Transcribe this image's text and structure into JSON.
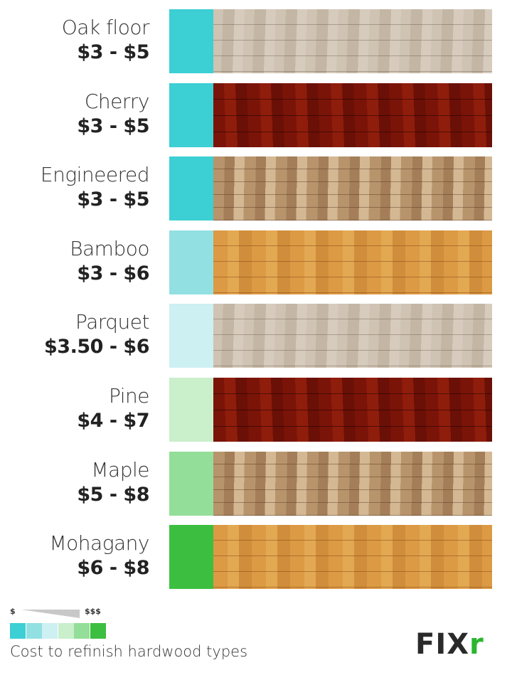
{
  "items": [
    {
      "name": "Oak floor",
      "price": "$3 - $5",
      "color": "#3ccfd3",
      "wood": "w-light"
    },
    {
      "name": "Cherry",
      "price": "$3 - $5",
      "color": "#3ccfd3",
      "wood": "w-red"
    },
    {
      "name": "Engineered",
      "price": "$3 - $5",
      "color": "#3ccfd3",
      "wood": "w-eng"
    },
    {
      "name": "Bamboo",
      "price": "$3 - $6",
      "color": "#93e0e3",
      "wood": "w-bam"
    },
    {
      "name": "Parquet",
      "price": "$3.50 - $6",
      "color": "#cdf0f2",
      "wood": "w-light"
    },
    {
      "name": "Pine",
      "price": "$4 - $7",
      "color": "#c9efcb",
      "wood": "w-red"
    },
    {
      "name": "Maple",
      "price": "$5 - $8",
      "color": "#93de98",
      "wood": "w-eng"
    },
    {
      "name": "Mohagany",
      "price": "$6 - $8",
      "color": "#3cbf40",
      "wood": "w-bam"
    }
  ],
  "legend": {
    "low": "$",
    "high": "$$$",
    "colors": [
      "#3ccfd3",
      "#93e0e3",
      "#cdf0f2",
      "#c9efcb",
      "#93de98",
      "#3cbf40"
    ]
  },
  "caption": "Cost to refinish hardwood types",
  "logo": {
    "text": "FIXr",
    "accent": "#2bb52f"
  }
}
